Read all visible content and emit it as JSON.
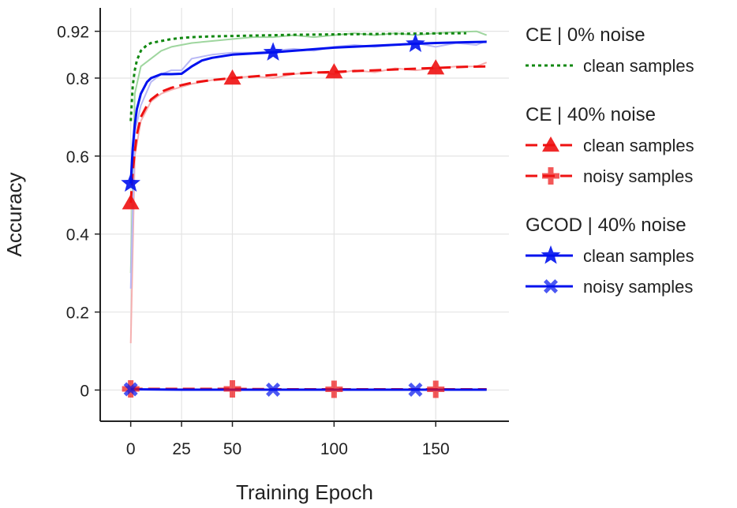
{
  "chart_data": {
    "type": "line",
    "xlabel": "Training Epoch",
    "ylabel": "Accuracy",
    "xlim": [
      -15,
      186
    ],
    "ylim": [
      -0.08,
      0.98
    ],
    "xticks": [
      0,
      25,
      50,
      100,
      150
    ],
    "xtick_labels": [
      "0",
      "25",
      "50",
      "100",
      "150"
    ],
    "yticks": [
      0,
      0.2,
      0.4,
      0.6,
      0.8,
      0.92
    ],
    "ytick_labels": [
      "0",
      "0.2",
      "0.4",
      "0.6",
      "0.8",
      "0.92"
    ],
    "grid": true,
    "legend": {
      "placement": "right",
      "groups": [
        {
          "title": "CE | 0% noise",
          "entries": [
            {
              "series": "ce0_clean",
              "label": "clean samples"
            }
          ]
        },
        {
          "title": "CE | 40% noise",
          "entries": [
            {
              "series": "ce40_clean",
              "label": "clean samples"
            },
            {
              "series": "ce40_noisy",
              "label": "noisy samples"
            }
          ]
        },
        {
          "title": "GCOD  | 40% noise",
          "entries": [
            {
              "series": "gcod_clean",
              "label": "clean samples"
            },
            {
              "series": "gcod_noisy",
              "label": "noisy samples"
            }
          ]
        }
      ]
    },
    "series": [
      {
        "id": "ce0_clean",
        "name": "CE | 0% noise — clean samples",
        "color": "#118811",
        "dash": "dotted",
        "marker": "none",
        "x": [
          0,
          1,
          2,
          3,
          5,
          8,
          10,
          15,
          20,
          25,
          30,
          40,
          50,
          60,
          70,
          80,
          100,
          120,
          140,
          165
        ],
        "y": [
          0.69,
          0.78,
          0.82,
          0.845,
          0.87,
          0.885,
          0.89,
          0.895,
          0.9,
          0.903,
          0.905,
          0.907,
          0.908,
          0.909,
          0.91,
          0.911,
          0.912,
          0.913,
          0.914,
          0.915
        ],
        "raw_color": "#9fd69f",
        "raw_x": [
          0,
          2,
          5,
          10,
          15,
          20,
          30,
          40,
          50,
          60,
          70,
          80,
          90,
          100,
          110,
          120,
          130,
          140,
          150,
          160,
          170,
          175
        ],
        "raw_y": [
          0.3,
          0.76,
          0.83,
          0.85,
          0.87,
          0.88,
          0.89,
          0.895,
          0.9,
          0.905,
          0.905,
          0.91,
          0.905,
          0.91,
          0.915,
          0.91,
          0.915,
          0.91,
          0.915,
          0.918,
          0.92,
          0.91
        ]
      },
      {
        "id": "ce40_clean",
        "name": "CE | 40% noise — clean samples",
        "color": "#ee1111",
        "dash": "dashed",
        "marker": "triangle",
        "x": [
          0,
          1,
          2,
          3,
          5,
          8,
          10,
          15,
          20,
          25,
          30,
          40,
          50,
          60,
          70,
          80,
          90,
          100,
          120,
          140,
          150,
          165,
          175
        ],
        "y": [
          0.48,
          0.56,
          0.61,
          0.655,
          0.7,
          0.73,
          0.745,
          0.765,
          0.775,
          0.782,
          0.788,
          0.795,
          0.8,
          0.804,
          0.808,
          0.811,
          0.814,
          0.816,
          0.82,
          0.824,
          0.826,
          0.829,
          0.83
        ],
        "raw_color": "#f5b0b0",
        "raw_x": [
          0,
          2,
          5,
          10,
          15,
          20,
          30,
          40,
          50,
          60,
          70,
          80,
          90,
          100,
          110,
          120,
          130,
          140,
          150,
          160,
          170,
          175
        ],
        "raw_y": [
          0.12,
          0.6,
          0.69,
          0.74,
          0.76,
          0.77,
          0.785,
          0.795,
          0.8,
          0.805,
          0.8,
          0.81,
          0.815,
          0.81,
          0.82,
          0.815,
          0.825,
          0.82,
          0.825,
          0.83,
          0.83,
          0.84
        ],
        "marker_x": [
          0,
          50,
          100,
          150
        ],
        "marker_y": [
          0.48,
          0.8,
          0.816,
          0.826
        ]
      },
      {
        "id": "ce40_noisy",
        "name": "CE | 40% noise — noisy samples",
        "color": "#ee1111",
        "dash": "dashed",
        "marker": "cross",
        "x": [
          0,
          25,
          50,
          75,
          100,
          125,
          150,
          175
        ],
        "y": [
          0.003,
          0.003,
          0.003,
          0.002,
          0.002,
          0.002,
          0.002,
          0.002
        ],
        "marker_x": [
          0,
          50,
          100,
          150
        ],
        "marker_y": [
          0.003,
          0.003,
          0.002,
          0.002
        ]
      },
      {
        "id": "gcod_clean",
        "name": "GCOD | 40% noise — clean samples",
        "color": "#0011ee",
        "dash": "solid",
        "marker": "star",
        "x": [
          0,
          1,
          2,
          3,
          5,
          8,
          10,
          15,
          20,
          25,
          30,
          35,
          40,
          50,
          60,
          70,
          80,
          90,
          100,
          120,
          140,
          150,
          165,
          175
        ],
        "y": [
          0.53,
          0.62,
          0.68,
          0.72,
          0.76,
          0.79,
          0.8,
          0.81,
          0.81,
          0.811,
          0.83,
          0.845,
          0.852,
          0.86,
          0.863,
          0.866,
          0.87,
          0.874,
          0.878,
          0.883,
          0.888,
          0.89,
          0.892,
          0.893
        ],
        "raw_color": "#b8b8f5",
        "raw_x": [
          0,
          2,
          5,
          10,
          15,
          20,
          25,
          30,
          40,
          50,
          60,
          70,
          80,
          90,
          100,
          110,
          120,
          130,
          140,
          150,
          160,
          170,
          175
        ],
        "raw_y": [
          0.26,
          0.66,
          0.73,
          0.79,
          0.81,
          0.82,
          0.82,
          0.85,
          0.86,
          0.865,
          0.865,
          0.87,
          0.875,
          0.87,
          0.88,
          0.885,
          0.88,
          0.885,
          0.89,
          0.88,
          0.89,
          0.885,
          0.895
        ],
        "marker_x": [
          0,
          70,
          140
        ],
        "marker_y": [
          0.53,
          0.866,
          0.888
        ]
      },
      {
        "id": "gcod_noisy",
        "name": "GCOD | 40% noise — noisy samples",
        "color": "#0011ee",
        "dash": "solid",
        "marker": "x",
        "x": [
          0,
          25,
          50,
          75,
          100,
          125,
          150,
          175
        ],
        "y": [
          0.002,
          0.001,
          0.001,
          0.001,
          0.001,
          0.001,
          0.001,
          0.001
        ],
        "marker_x": [
          0,
          70,
          140
        ],
        "marker_y": [
          0.002,
          0.001,
          0.001
        ]
      }
    ]
  }
}
